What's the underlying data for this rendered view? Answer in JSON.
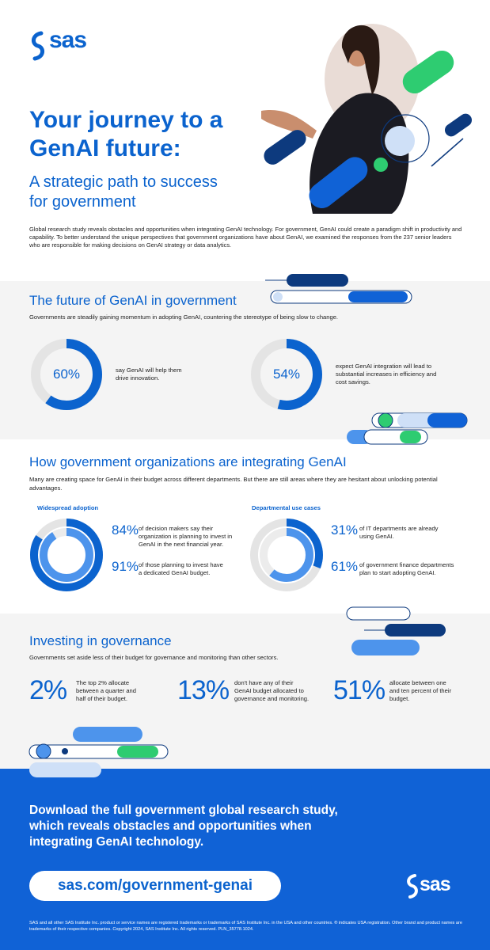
{
  "header": {
    "logo": "sas",
    "title": "Your journey to a GenAI future:",
    "subtitle": "A strategic path to success for government",
    "intro": "Global research study reveals obstacles and opportunities when integrating GenAI technology. For government, GenAI could create a paradigm shift in productivity and capability. To better understand the unique perspectives that government organizations have about GenAI, we examined the responses from the 237 senior leaders who are responsible for making decisions on GenAI strategy or data analytics."
  },
  "sections": [
    {
      "title": "The future of GenAI in government",
      "description": "Governments are steadily gaining momentum in adopting GenAI, countering the stereotype of being slow to change.",
      "stats": [
        {
          "value": 60,
          "label": "60%",
          "text": "say GenAI will help them drive innovation."
        },
        {
          "value": 54,
          "label": "54%",
          "text": "expect GenAI integration will lead to substantial increases in efficiency and cost savings."
        }
      ]
    },
    {
      "title": "How government organizations are integrating GenAI",
      "description": "Many are creating space for GenAI in their budget across different departments. But there are still areas where they are hesitant about unlocking potential advantages.",
      "panels": [
        {
          "heading": "Widespread adoption",
          "stats": [
            {
              "value": 84,
              "label": "84%",
              "text": "of decision makers say their organization is planning to invest in GenAI in the next financial year."
            },
            {
              "value": 91,
              "label": "91%",
              "text": "of those planning to invest have a dedicated GenAI budget."
            }
          ]
        },
        {
          "heading": "Departmental use cases",
          "stats": [
            {
              "value": 31,
              "label": "31%",
              "text": "of IT departments are already using GenAI."
            },
            {
              "value": 61,
              "label": "61%",
              "text": "of government finance departments plan to start adopting GenAI."
            }
          ]
        }
      ]
    },
    {
      "title": "Investing in governance",
      "description": "Governments set aside less of their budget for governance and monitoring than other sectors.",
      "stats": [
        {
          "label": "2%",
          "text": "The top 2% allocate between a quarter and half of their budget."
        },
        {
          "label": "13%",
          "text": "don't have any of their GenAI budget allocated to governance and monitoring."
        },
        {
          "label": "51%",
          "text": "allocate between one and ten percent of their budget."
        }
      ]
    }
  ],
  "footer": {
    "cta": "Download the full government global research study, which reveals obstacles and opportunities when integrating GenAI technology.",
    "url": "sas.com/government-genai",
    "logo": "sas",
    "legal": "SAS and all other SAS Institute Inc. product or service names are registered trademarks or trademarks of SAS Institute Inc. in the USA and other countries. ® indicates USA registration. Other brand and product names are trademarks of their respective companies. Copyright 2024, SAS Institute Inc. All rights reserved. PLN_35778.1024."
  }
}
